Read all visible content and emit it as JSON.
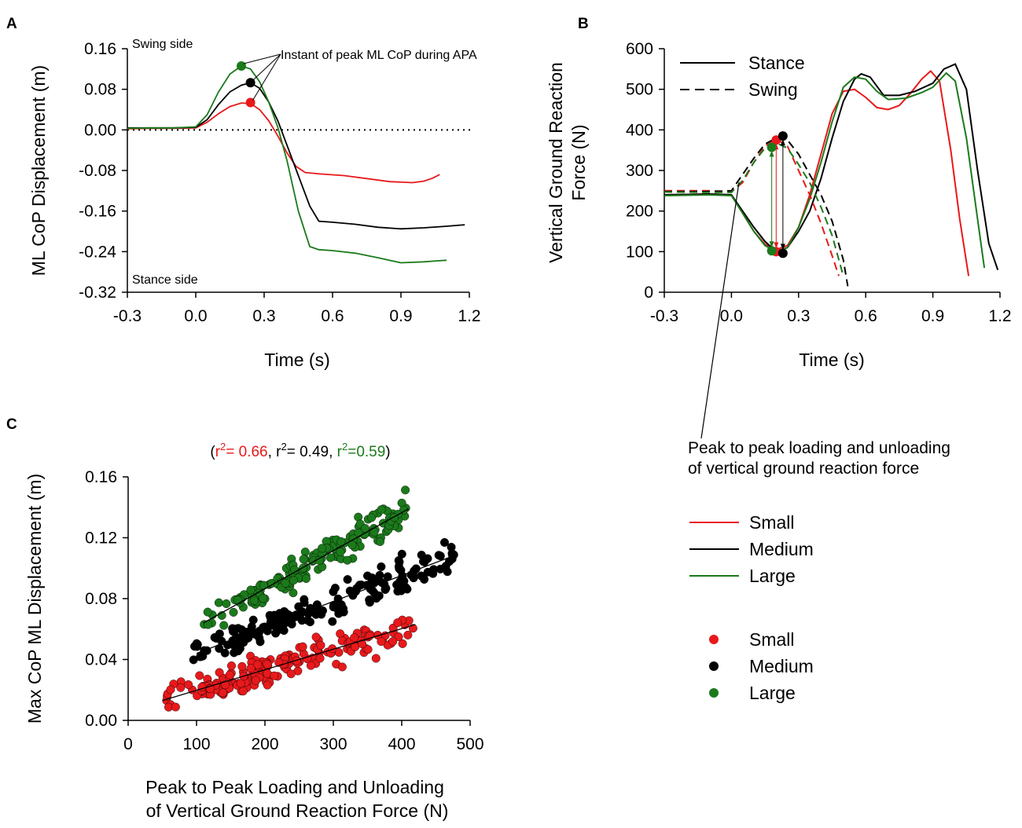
{
  "figure": {
    "panels": {
      "a": "A",
      "b": "B",
      "c": "C"
    },
    "annotation_peak_to_peak": [
      "Peak to peak loading and unloading",
      "of vertical ground reaction force"
    ]
  },
  "colors": {
    "small": "#e8191b",
    "medium": "#000000",
    "large": "#1b7a1b"
  },
  "chart_data": [
    {
      "id": "A",
      "type": "line",
      "title": "",
      "xlabel": "Time (s)",
      "ylabel": "ML CoP Displacement (m)",
      "xlim": [
        -0.3,
        1.2
      ],
      "ylim": [
        -0.32,
        0.16
      ],
      "xticks": [
        "-0.3",
        "0.0",
        "0.3",
        "0.6",
        "0.9",
        "1.2"
      ],
      "yticks": [
        "0.16",
        "0.08",
        "0.00",
        "-0.08",
        "-0.16",
        "-0.24",
        "-0.32"
      ],
      "notes": {
        "top": "Swing side",
        "bottom": "Stance side",
        "peak": "Instant of peak ML CoP during APA"
      },
      "zero_line": true,
      "series": [
        {
          "name": "Small",
          "color_key": "small",
          "points": [
            [
              -0.3,
              0.002
            ],
            [
              -0.2,
              0.003
            ],
            [
              -0.1,
              0.003
            ],
            [
              0.0,
              0.004
            ],
            [
              0.05,
              0.015
            ],
            [
              0.1,
              0.032
            ],
            [
              0.15,
              0.046
            ],
            [
              0.2,
              0.053
            ],
            [
              0.24,
              0.052
            ],
            [
              0.28,
              0.04
            ],
            [
              0.32,
              0.018
            ],
            [
              0.36,
              -0.012
            ],
            [
              0.4,
              -0.045
            ],
            [
              0.44,
              -0.072
            ],
            [
              0.48,
              -0.084
            ],
            [
              0.55,
              -0.087
            ],
            [
              0.65,
              -0.09
            ],
            [
              0.75,
              -0.096
            ],
            [
              0.85,
              -0.102
            ],
            [
              0.95,
              -0.104
            ],
            [
              1.0,
              -0.101
            ],
            [
              1.04,
              -0.095
            ],
            [
              1.07,
              -0.088
            ]
          ],
          "peak": [
            0.24,
            0.054
          ]
        },
        {
          "name": "Medium",
          "color_key": "medium",
          "points": [
            [
              -0.3,
              0.004
            ],
            [
              -0.2,
              0.004
            ],
            [
              -0.1,
              0.004
            ],
            [
              0.0,
              0.005
            ],
            [
              0.05,
              0.02
            ],
            [
              0.1,
              0.05
            ],
            [
              0.15,
              0.075
            ],
            [
              0.2,
              0.088
            ],
            [
              0.24,
              0.093
            ],
            [
              0.28,
              0.082
            ],
            [
              0.32,
              0.055
            ],
            [
              0.36,
              0.018
            ],
            [
              0.4,
              -0.03
            ],
            [
              0.45,
              -0.09
            ],
            [
              0.5,
              -0.15
            ],
            [
              0.54,
              -0.18
            ],
            [
              0.6,
              -0.182
            ],
            [
              0.7,
              -0.186
            ],
            [
              0.8,
              -0.192
            ],
            [
              0.9,
              -0.195
            ],
            [
              1.0,
              -0.193
            ],
            [
              1.1,
              -0.19
            ],
            [
              1.18,
              -0.187
            ]
          ],
          "peak": [
            0.24,
            0.093
          ]
        },
        {
          "name": "Large",
          "color_key": "large",
          "points": [
            [
              -0.3,
              0.003
            ],
            [
              -0.2,
              0.004
            ],
            [
              -0.1,
              0.004
            ],
            [
              0.0,
              0.006
            ],
            [
              0.05,
              0.03
            ],
            [
              0.1,
              0.075
            ],
            [
              0.15,
              0.11
            ],
            [
              0.2,
              0.126
            ],
            [
              0.24,
              0.12
            ],
            [
              0.28,
              0.095
            ],
            [
              0.32,
              0.055
            ],
            [
              0.36,
              0.005
            ],
            [
              0.4,
              -0.06
            ],
            [
              0.45,
              -0.16
            ],
            [
              0.5,
              -0.23
            ],
            [
              0.54,
              -0.236
            ],
            [
              0.6,
              -0.238
            ],
            [
              0.7,
              -0.243
            ],
            [
              0.8,
              -0.252
            ],
            [
              0.9,
              -0.262
            ],
            [
              1.0,
              -0.26
            ],
            [
              1.06,
              -0.258
            ],
            [
              1.1,
              -0.257
            ]
          ],
          "peak": [
            0.2,
            0.126
          ]
        }
      ]
    },
    {
      "id": "B",
      "type": "line",
      "title": "",
      "xlabel": "Time (s)",
      "ylabel": [
        "Vertical Ground Reaction",
        "Force (N)"
      ],
      "xlim": [
        -0.3,
        1.2
      ],
      "ylim": [
        0,
        600
      ],
      "xticks": [
        "-0.3",
        "0.0",
        "0.3",
        "0.6",
        "0.9",
        "1.2"
      ],
      "yticks": [
        "600",
        "500",
        "400",
        "300",
        "200",
        "100",
        "0"
      ],
      "legend": [
        {
          "label": "Stance",
          "style": "solid"
        },
        {
          "label": "Swing",
          "style": "dashed"
        }
      ],
      "series": [
        {
          "name": "Small stance",
          "color_key": "small",
          "style": "solid",
          "points": [
            [
              -0.3,
              240
            ],
            [
              -0.1,
              242
            ],
            [
              0.0,
              240
            ],
            [
              0.05,
              195
            ],
            [
              0.1,
              150
            ],
            [
              0.15,
              118
            ],
            [
              0.2,
              105
            ],
            [
              0.25,
              115
            ],
            [
              0.3,
              160
            ],
            [
              0.35,
              240
            ],
            [
              0.4,
              340
            ],
            [
              0.45,
              440
            ],
            [
              0.5,
              495
            ],
            [
              0.55,
              500
            ],
            [
              0.6,
              480
            ],
            [
              0.65,
              455
            ],
            [
              0.7,
              450
            ],
            [
              0.75,
              460
            ],
            [
              0.8,
              490
            ],
            [
              0.85,
              525
            ],
            [
              0.89,
              545
            ],
            [
              0.93,
              520
            ],
            [
              0.98,
              350
            ],
            [
              1.02,
              180
            ],
            [
              1.06,
              40
            ]
          ]
        },
        {
          "name": "Medium stance",
          "color_key": "medium",
          "style": "solid",
          "points": [
            [
              -0.3,
              240
            ],
            [
              -0.1,
              242
            ],
            [
              0.0,
              240
            ],
            [
              0.05,
              200
            ],
            [
              0.1,
              160
            ],
            [
              0.15,
              125
            ],
            [
              0.2,
              100
            ],
            [
              0.25,
              110
            ],
            [
              0.3,
              150
            ],
            [
              0.35,
              200
            ],
            [
              0.4,
              280
            ],
            [
              0.45,
              380
            ],
            [
              0.5,
              470
            ],
            [
              0.55,
              525
            ],
            [
              0.58,
              538
            ],
            [
              0.62,
              530
            ],
            [
              0.68,
              485
            ],
            [
              0.75,
              485
            ],
            [
              0.82,
              495
            ],
            [
              0.9,
              515
            ],
            [
              0.95,
              550
            ],
            [
              1.0,
              562
            ],
            [
              1.05,
              500
            ],
            [
              1.1,
              300
            ],
            [
              1.15,
              120
            ],
            [
              1.19,
              55
            ]
          ]
        },
        {
          "name": "Large stance",
          "color_key": "large",
          "style": "solid",
          "points": [
            [
              -0.3,
              238
            ],
            [
              -0.1,
              240
            ],
            [
              0.0,
              238
            ],
            [
              0.05,
              195
            ],
            [
              0.1,
              150
            ],
            [
              0.15,
              115
            ],
            [
              0.2,
              100
            ],
            [
              0.25,
              110
            ],
            [
              0.3,
              160
            ],
            [
              0.35,
              230
            ],
            [
              0.4,
              320
            ],
            [
              0.45,
              420
            ],
            [
              0.5,
              505
            ],
            [
              0.55,
              530
            ],
            [
              0.6,
              525
            ],
            [
              0.65,
              495
            ],
            [
              0.7,
              475
            ],
            [
              0.78,
              478
            ],
            [
              0.85,
              492
            ],
            [
              0.9,
              505
            ],
            [
              0.96,
              540
            ],
            [
              1.0,
              520
            ],
            [
              1.05,
              380
            ],
            [
              1.1,
              180
            ],
            [
              1.13,
              60
            ]
          ]
        },
        {
          "name": "Small swing",
          "color_key": "small",
          "style": "dashed",
          "points": [
            [
              -0.3,
              250
            ],
            [
              -0.1,
              250
            ],
            [
              0.0,
              248
            ],
            [
              0.05,
              270
            ],
            [
              0.1,
              320
            ],
            [
              0.15,
              360
            ],
            [
              0.2,
              378
            ],
            [
              0.25,
              360
            ],
            [
              0.3,
              300
            ],
            [
              0.35,
              240
            ],
            [
              0.4,
              170
            ],
            [
              0.45,
              90
            ],
            [
              0.48,
              40
            ]
          ]
        },
        {
          "name": "Medium swing",
          "color_key": "medium",
          "style": "dashed",
          "points": [
            [
              -0.3,
              248
            ],
            [
              -0.1,
              248
            ],
            [
              0.0,
              250
            ],
            [
              0.05,
              290
            ],
            [
              0.1,
              330
            ],
            [
              0.15,
              365
            ],
            [
              0.2,
              380
            ],
            [
              0.25,
              375
            ],
            [
              0.3,
              340
            ],
            [
              0.35,
              290
            ],
            [
              0.4,
              240
            ],
            [
              0.45,
              175
            ],
            [
              0.5,
              80
            ],
            [
              0.52,
              15
            ]
          ]
        },
        {
          "name": "Large swing",
          "color_key": "large",
          "style": "dashed",
          "points": [
            [
              -0.3,
              247
            ],
            [
              -0.1,
              246
            ],
            [
              0.0,
              246
            ],
            [
              0.05,
              275
            ],
            [
              0.1,
              320
            ],
            [
              0.15,
              355
            ],
            [
              0.2,
              368
            ],
            [
              0.25,
              355
            ],
            [
              0.3,
              315
            ],
            [
              0.35,
              270
            ],
            [
              0.4,
              210
            ],
            [
              0.45,
              140
            ],
            [
              0.5,
              40
            ]
          ]
        }
      ],
      "markers": [
        {
          "color_key": "small",
          "x": 0.2,
          "y": 375
        },
        {
          "color_key": "small",
          "x": 0.2,
          "y": 100
        },
        {
          "color_key": "medium",
          "x": 0.23,
          "y": 385
        },
        {
          "color_key": "medium",
          "x": 0.23,
          "y": 96
        },
        {
          "color_key": "large",
          "x": 0.18,
          "y": 357
        },
        {
          "color_key": "large",
          "x": 0.18,
          "y": 102
        }
      ]
    },
    {
      "id": "C",
      "type": "scatter",
      "title": "",
      "xlabel": [
        "Peak to Peak Loading and Unloading",
        "of Vertical Ground Reaction Force (N)"
      ],
      "ylabel": "Max CoP ML Displacement (m)",
      "xlim": [
        0,
        500
      ],
      "ylim": [
        0,
        0.16
      ],
      "xticks": [
        "0",
        "100",
        "200",
        "300",
        "400",
        "500"
      ],
      "yticks": [
        "0.16",
        "0.12",
        "0.08",
        "0.04",
        "0.00"
      ],
      "r2": [
        {
          "text": "r",
          "value": "= 0.66",
          "color_key": "small"
        },
        {
          "text": "r",
          "value": "= 0.49",
          "color_key": "medium"
        },
        {
          "text": "r",
          "value": "=0.59",
          "color_key": "large"
        }
      ],
      "r2_open": "(",
      "r2_sep": ", ",
      "r2_close": ")",
      "r2_sup": "2",
      "series": [
        {
          "name": "Small",
          "color_key": "small",
          "x_range": [
            48,
            420
          ],
          "fit": [
            [
              50,
              0.013
            ],
            [
              420,
              0.063
            ]
          ],
          "count": 190
        },
        {
          "name": "Medium",
          "color_key": "medium",
          "x_range": [
            95,
            478
          ],
          "fit": [
            [
              100,
              0.044
            ],
            [
              475,
              0.108
            ]
          ],
          "count": 190
        },
        {
          "name": "Large",
          "color_key": "large",
          "x_range": [
            110,
            410
          ],
          "fit": [
            [
              110,
              0.064
            ],
            [
              410,
              0.139
            ]
          ],
          "count": 170
        }
      ]
    }
  ],
  "legend_lines": [
    {
      "label": "Small",
      "color_key": "small"
    },
    {
      "label": "Medium",
      "color_key": "medium"
    },
    {
      "label": "Large",
      "color_key": "large"
    }
  ],
  "legend_dots": [
    {
      "label": "Small",
      "color_key": "small"
    },
    {
      "label": "Medium",
      "color_key": "medium"
    },
    {
      "label": "Large",
      "color_key": "large"
    }
  ]
}
